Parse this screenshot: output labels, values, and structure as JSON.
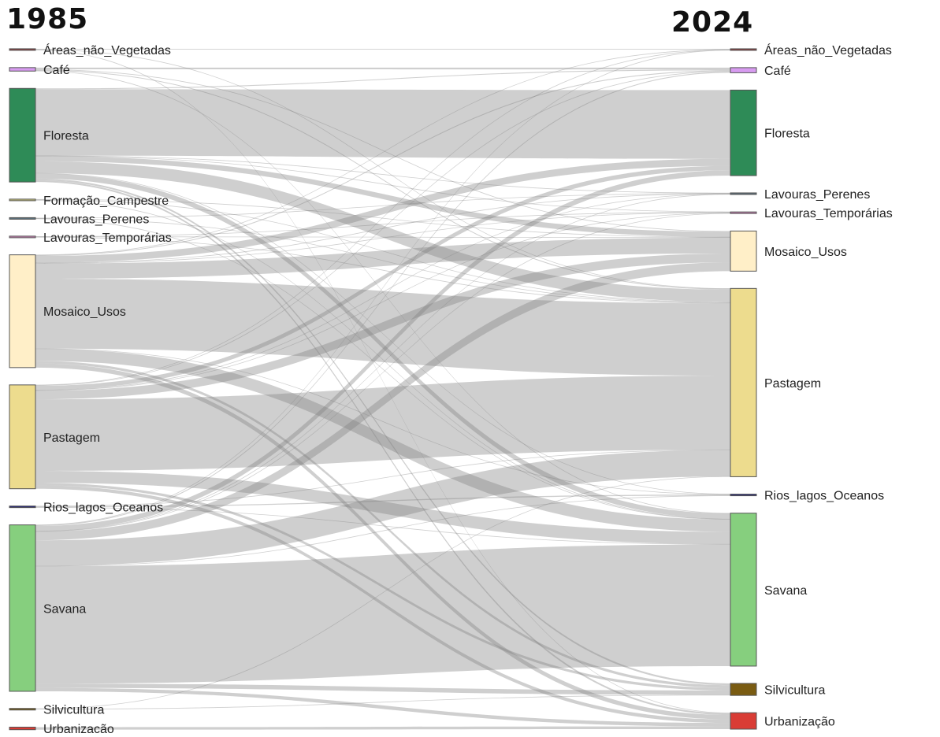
{
  "chart_data": {
    "type": "sankey",
    "columns": [
      "1985",
      "2024"
    ],
    "left_nodes": [
      {
        "id": "L_areas",
        "label": "Áreas_não_Vegetadas",
        "color": "#8a3b3b"
      },
      {
        "id": "L_cafe",
        "label": "Café",
        "color": "#d79bf0"
      },
      {
        "id": "L_floresta",
        "label": "Floresta",
        "color": "#2e8b57"
      },
      {
        "id": "L_formacao",
        "label": "Formação_Campestre",
        "color": "#c9c27a"
      },
      {
        "id": "L_perenes",
        "label": "Lavouras_Perenes",
        "color": "#5a6e7a"
      },
      {
        "id": "L_temp",
        "label": "Lavouras_Temporárias",
        "color": "#c97fb3"
      },
      {
        "id": "L_mosaico",
        "label": "Mosaico_Usos",
        "color": "#ffefc8"
      },
      {
        "id": "L_pastagem",
        "label": "Pastagem",
        "color": "#eddc8e"
      },
      {
        "id": "L_rios",
        "label": "Rios_lagos_Oceanos",
        "color": "#2a2a7a"
      },
      {
        "id": "L_savana",
        "label": "Savana",
        "color": "#86cf7e"
      },
      {
        "id": "L_silvi",
        "label": "Silvicultura",
        "color": "#7a5c12"
      },
      {
        "id": "L_urb",
        "label": "Urbanização",
        "color": "#d93c35"
      }
    ],
    "right_nodes": [
      {
        "id": "R_areas",
        "label": "Áreas_não_Vegetadas",
        "color": "#8a3b3b"
      },
      {
        "id": "R_cafe",
        "label": "Café",
        "color": "#d79bf0"
      },
      {
        "id": "R_floresta",
        "label": "Floresta",
        "color": "#2e8b57"
      },
      {
        "id": "R_perenes",
        "label": "Lavouras_Perenes",
        "color": "#5a6e7a"
      },
      {
        "id": "R_temp",
        "label": "Lavouras_Temporárias",
        "color": "#c97fb3"
      },
      {
        "id": "R_mosaico",
        "label": "Mosaico_Usos",
        "color": "#ffefc8"
      },
      {
        "id": "R_pastagem",
        "label": "Pastagem",
        "color": "#eddc8e"
      },
      {
        "id": "R_rios",
        "label": "Rios_lagos_Oceanos",
        "color": "#2a2a7a"
      },
      {
        "id": "R_savana",
        "label": "Savana",
        "color": "#86cf7e"
      },
      {
        "id": "R_silvi",
        "label": "Silvicultura",
        "color": "#7a5c12"
      },
      {
        "id": "R_urb",
        "label": "Urbanização",
        "color": "#d93c35"
      }
    ],
    "links": [
      {
        "source": "L_areas",
        "target": "R_areas",
        "value": 0.8
      },
      {
        "source": "L_areas",
        "target": "R_urb",
        "value": 0.6
      },
      {
        "source": "L_areas",
        "target": "R_pastagem",
        "value": 0.3
      },
      {
        "source": "L_cafe",
        "target": "R_cafe",
        "value": 2
      },
      {
        "source": "L_cafe",
        "target": "R_pastagem",
        "value": 1
      },
      {
        "source": "L_cafe",
        "target": "R_mosaico",
        "value": 0.8
      },
      {
        "source": "L_cafe",
        "target": "R_savana",
        "value": 0.3
      },
      {
        "source": "L_floresta",
        "target": "R_floresta",
        "value": 78
      },
      {
        "source": "L_floresta",
        "target": "R_pastagem",
        "value": 14
      },
      {
        "source": "L_floresta",
        "target": "R_mosaico",
        "value": 6
      },
      {
        "source": "L_floresta",
        "target": "R_savana",
        "value": 6
      },
      {
        "source": "L_floresta",
        "target": "R_silvi",
        "value": 2
      },
      {
        "source": "L_floresta",
        "target": "R_cafe",
        "value": 1
      },
      {
        "source": "L_floresta",
        "target": "R_urb",
        "value": 2
      },
      {
        "source": "L_floresta",
        "target": "R_perenes",
        "value": 0.3
      },
      {
        "source": "L_floresta",
        "target": "R_temp",
        "value": 0.3
      },
      {
        "source": "L_floresta",
        "target": "R_rios",
        "value": 0.3
      },
      {
        "source": "L_formacao",
        "target": "R_pastagem",
        "value": 0.6
      },
      {
        "source": "L_formacao",
        "target": "R_savana",
        "value": 0.5
      },
      {
        "source": "L_formacao",
        "target": "R_mosaico",
        "value": 0.3
      },
      {
        "source": "L_perenes",
        "target": "R_perenes",
        "value": 0.5
      },
      {
        "source": "L_perenes",
        "target": "R_pastagem",
        "value": 0.5
      },
      {
        "source": "L_perenes",
        "target": "R_savana",
        "value": 0.3
      },
      {
        "source": "L_temp",
        "target": "R_temp",
        "value": 0.4
      },
      {
        "source": "L_temp",
        "target": "R_pastagem",
        "value": 0.5
      },
      {
        "source": "L_temp",
        "target": "R_mosaico",
        "value": 0.4
      },
      {
        "source": "L_mosaico",
        "target": "R_pastagem",
        "value": 82
      },
      {
        "source": "L_mosaico",
        "target": "R_mosaico",
        "value": 18
      },
      {
        "source": "L_mosaico",
        "target": "R_savana",
        "value": 14
      },
      {
        "source": "L_mosaico",
        "target": "R_floresta",
        "value": 8
      },
      {
        "source": "L_mosaico",
        "target": "R_urb",
        "value": 5
      },
      {
        "source": "L_mosaico",
        "target": "R_silvi",
        "value": 3
      },
      {
        "source": "L_mosaico",
        "target": "R_cafe",
        "value": 1
      },
      {
        "source": "L_mosaico",
        "target": "R_temp",
        "value": 0.5
      },
      {
        "source": "L_mosaico",
        "target": "R_perenes",
        "value": 0.3
      },
      {
        "source": "L_mosaico",
        "target": "R_areas",
        "value": 0.3
      },
      {
        "source": "L_mosaico",
        "target": "R_rios",
        "value": 0.3
      },
      {
        "source": "L_pastagem",
        "target": "R_pastagem",
        "value": 84
      },
      {
        "source": "L_pastagem",
        "target": "R_mosaico",
        "value": 10
      },
      {
        "source": "L_pastagem",
        "target": "R_savana",
        "value": 14
      },
      {
        "source": "L_pastagem",
        "target": "R_floresta",
        "value": 5
      },
      {
        "source": "L_pastagem",
        "target": "R_urb",
        "value": 4
      },
      {
        "source": "L_pastagem",
        "target": "R_silvi",
        "value": 3
      },
      {
        "source": "L_pastagem",
        "target": "R_cafe",
        "value": 0.8
      },
      {
        "source": "L_pastagem",
        "target": "R_temp",
        "value": 0.5
      },
      {
        "source": "L_pastagem",
        "target": "R_perenes",
        "value": 0.3
      },
      {
        "source": "L_pastagem",
        "target": "R_areas",
        "value": 0.3
      },
      {
        "source": "L_rios",
        "target": "R_rios",
        "value": 1.2
      },
      {
        "source": "L_rios",
        "target": "R_savana",
        "value": 0.3
      },
      {
        "source": "L_rios",
        "target": "R_pastagem",
        "value": 0.3
      },
      {
        "source": "L_savana",
        "target": "R_savana",
        "value": 138
      },
      {
        "source": "L_savana",
        "target": "R_pastagem",
        "value": 30
      },
      {
        "source": "L_savana",
        "target": "R_mosaico",
        "value": 10
      },
      {
        "source": "L_savana",
        "target": "R_floresta",
        "value": 6
      },
      {
        "source": "L_savana",
        "target": "R_silvi",
        "value": 5
      },
      {
        "source": "L_savana",
        "target": "R_urb",
        "value": 4
      },
      {
        "source": "L_savana",
        "target": "R_cafe",
        "value": 1
      },
      {
        "source": "L_savana",
        "target": "R_temp",
        "value": 0.5
      },
      {
        "source": "L_savana",
        "target": "R_perenes",
        "value": 0.3
      },
      {
        "source": "L_savana",
        "target": "R_areas",
        "value": 0.3
      },
      {
        "source": "L_savana",
        "target": "R_rios",
        "value": 0.3
      },
      {
        "source": "L_silvi",
        "target": "R_silvi",
        "value": 0.6
      },
      {
        "source": "L_silvi",
        "target": "R_pastagem",
        "value": 0.3
      },
      {
        "source": "L_urb",
        "target": "R_urb",
        "value": 3
      }
    ]
  }
}
